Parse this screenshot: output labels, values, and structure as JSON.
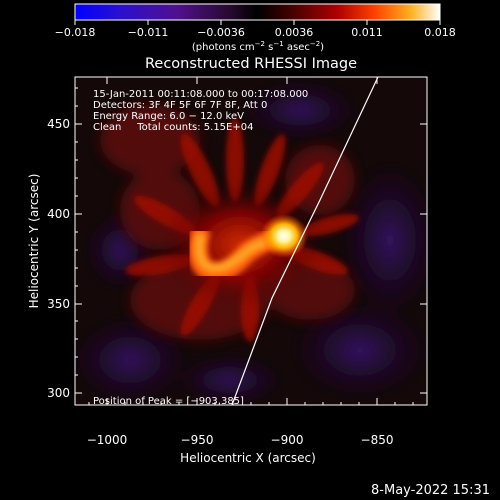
{
  "colorbar": {
    "ticks": [
      "−0.018",
      "−0.011",
      "−0.0036",
      "0.0036",
      "0.011",
      "0.018"
    ],
    "units_main": "(photons cm",
    "units_sup1": "−2",
    "units_mid": " s",
    "units_sup2": "−1",
    "units_end": " asec",
    "units_sup3": "−2",
    "units_close": ")"
  },
  "title": "Reconstructed RHESSI Image",
  "info": {
    "line1": "15-Jan-2011 00:11:08.000 to 00:17:08.000",
    "line2": "Detectors: 3F 4F 5F 6F 7F 8F, Att 0",
    "line3": "Energy Range: 6.0 − 12.0 keV",
    "line4": "Clean     Total counts: 5.15E+04"
  },
  "peak_label": "Position of Peak = [−903,385]",
  "axes": {
    "xlabel": "Heliocentric X (arcsec)",
    "ylabel": "Heliocentric Y (arcsec)",
    "xticks": [
      "−1000",
      "−950",
      "−900",
      "−850"
    ],
    "yticks": [
      "300",
      "350",
      "400",
      "450"
    ]
  },
  "footer_date": "8-May-2022 15:31"
}
